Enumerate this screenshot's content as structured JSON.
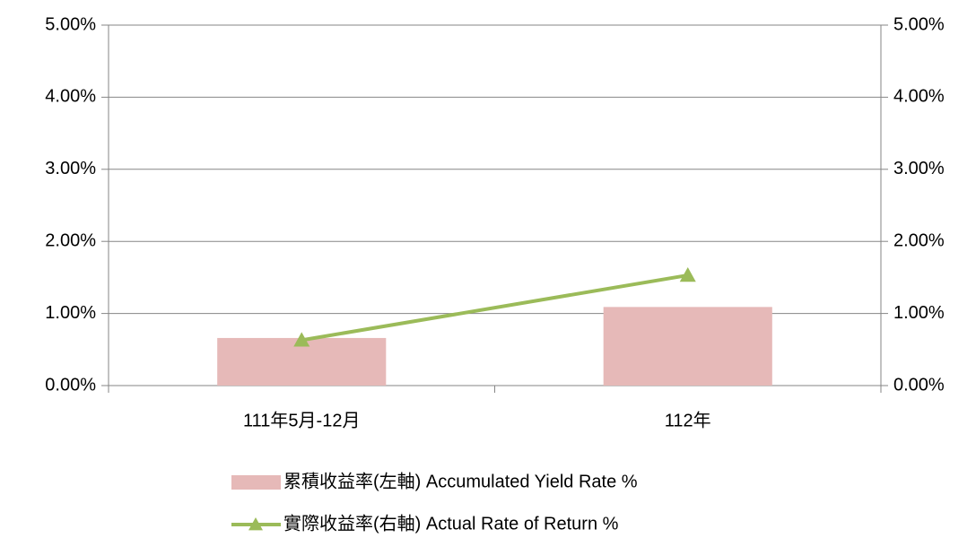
{
  "chart_data": {
    "type": "bar_line",
    "categories": [
      "111年5月-12月",
      "112年"
    ],
    "series": [
      {
        "name": "累積收益率(左軸) Accumulated Yield Rate %",
        "type": "bar",
        "color": "#e6b9b8",
        "values": [
          0.66,
          1.09
        ]
      },
      {
        "name": "實際收益率(右軸) Actual Rate of Return %",
        "type": "line",
        "axis": "y2",
        "color": "#9bbb59",
        "values": [
          0.63,
          1.53
        ]
      }
    ],
    "ylim": [
      0,
      5
    ],
    "yticks": [
      {
        "value": 0,
        "label": "0.00%"
      },
      {
        "value": 1,
        "label": "1.00%"
      },
      {
        "value": 2,
        "label": "2.00%"
      },
      {
        "value": 3,
        "label": "3.00%"
      },
      {
        "value": 4,
        "label": "4.00%"
      },
      {
        "value": 5,
        "label": "5.00%"
      }
    ],
    "y2lim": [
      0,
      5
    ],
    "y2ticks": [
      {
        "value": 0,
        "label": "0.00%"
      },
      {
        "value": 1,
        "label": "1.00%"
      },
      {
        "value": 2,
        "label": "2.00%"
      },
      {
        "value": 3,
        "label": "3.00%"
      },
      {
        "value": 4,
        "label": "4.00%"
      },
      {
        "value": 5,
        "label": "5.00%"
      }
    ],
    "grid": true,
    "legend": "bottom"
  }
}
